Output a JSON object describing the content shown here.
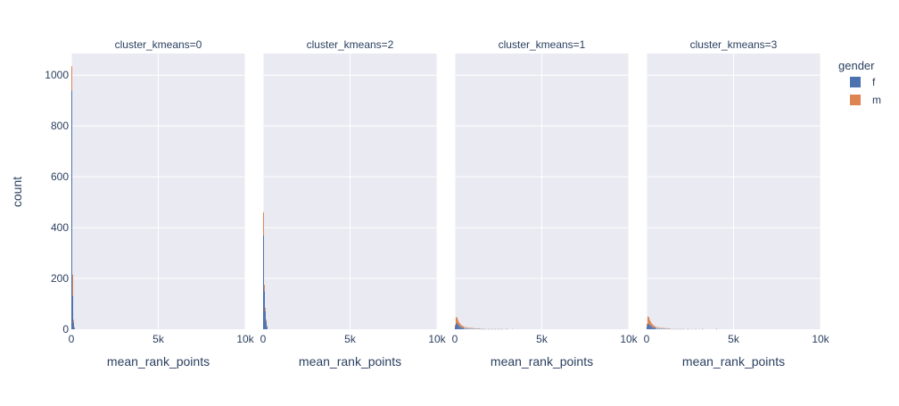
{
  "chart_data": {
    "type": "histogram",
    "barmode": "stack",
    "y_axis_label": "count",
    "x_axis_label": "mean_rank_points",
    "x_range": [
      0,
      10000
    ],
    "y_range": [
      0,
      1085
    ],
    "x_ticks": [
      {
        "value": 0,
        "label": "0"
      },
      {
        "value": 5000,
        "label": "5k"
      },
      {
        "value": 10000,
        "label": "10k"
      }
    ],
    "y_ticks": [
      {
        "value": 0,
        "label": "0"
      },
      {
        "value": 200,
        "label": "200"
      },
      {
        "value": 400,
        "label": "400"
      },
      {
        "value": 600,
        "label": "600"
      },
      {
        "value": 800,
        "label": "800"
      },
      {
        "value": 1000,
        "label": "1000"
      }
    ],
    "grid": true,
    "legend": {
      "title": "gender",
      "placement": "top-right",
      "entries": [
        {
          "name": "f",
          "color": "#4C72B0"
        },
        {
          "name": "m",
          "color": "#DD8452"
        }
      ]
    },
    "colors": {
      "f": "#4C72B0",
      "m": "#DD8452",
      "plot_bg": "#EAEAF2",
      "grid": "#FFFFFF"
    },
    "bin_width": 50,
    "panels": [
      {
        "title": "cluster_kmeans=0",
        "series": [
          {
            "name": "f",
            "bins": [
              [
                0,
                940
              ],
              [
                50,
                130
              ],
              [
                100,
                25
              ],
              [
                150,
                5
              ]
            ]
          },
          {
            "name": "m",
            "bins": [
              [
                0,
                95
              ],
              [
                50,
                85
              ],
              [
                100,
                12
              ],
              [
                150,
                3
              ]
            ]
          }
        ]
      },
      {
        "title": "cluster_kmeans=2",
        "series": [
          {
            "name": "f",
            "bins": [
              [
                0,
                370
              ],
              [
                50,
                150
              ],
              [
                100,
                70
              ],
              [
                150,
                30
              ],
              [
                200,
                10
              ]
            ]
          },
          {
            "name": "m",
            "bins": [
              [
                0,
                90
              ],
              [
                50,
                25
              ],
              [
                100,
                15
              ],
              [
                150,
                8
              ],
              [
                200,
                4
              ]
            ]
          }
        ]
      },
      {
        "title": "cluster_kmeans=1",
        "series": [
          {
            "name": "f",
            "bins": [
              [
                0,
                10
              ],
              [
                50,
                22
              ],
              [
                100,
                25
              ],
              [
                150,
                20
              ],
              [
                200,
                15
              ],
              [
                250,
                12
              ],
              [
                300,
                10
              ],
              [
                350,
                8
              ],
              [
                400,
                7
              ],
              [
                450,
                6
              ],
              [
                500,
                5
              ],
              [
                600,
                4
              ],
              [
                700,
                4
              ],
              [
                800,
                3
              ],
              [
                900,
                3
              ],
              [
                1000,
                3
              ],
              [
                1100,
                2
              ],
              [
                1200,
                2
              ],
              [
                1300,
                2
              ],
              [
                1400,
                2
              ],
              [
                1500,
                1
              ],
              [
                1600,
                1
              ],
              [
                1700,
                1
              ],
              [
                1900,
                1
              ],
              [
                2100,
                1
              ],
              [
                2300,
                1
              ],
              [
                2500,
                1
              ],
              [
                2700,
                1
              ],
              [
                3000,
                1
              ]
            ]
          },
          {
            "name": "m",
            "bins": [
              [
                0,
                8
              ],
              [
                50,
                25
              ],
              [
                100,
                22
              ],
              [
                150,
                18
              ],
              [
                200,
                15
              ],
              [
                250,
                12
              ],
              [
                300,
                10
              ],
              [
                350,
                8
              ],
              [
                400,
                7
              ],
              [
                450,
                6
              ],
              [
                500,
                5
              ],
              [
                600,
                5
              ],
              [
                700,
                4
              ],
              [
                800,
                4
              ],
              [
                900,
                3
              ],
              [
                1000,
                3
              ],
              [
                1100,
                2
              ],
              [
                1200,
                2
              ],
              [
                1300,
                2
              ],
              [
                1400,
                2
              ],
              [
                1500,
                1
              ],
              [
                1600,
                1
              ],
              [
                1800,
                1
              ],
              [
                2000,
                1
              ],
              [
                2200,
                1
              ],
              [
                2400,
                1
              ],
              [
                2600,
                1
              ],
              [
                2900,
                1
              ],
              [
                3300,
                1
              ]
            ]
          }
        ]
      },
      {
        "title": "cluster_kmeans=3",
        "series": [
          {
            "name": "f",
            "bins": [
              [
                0,
                12
              ],
              [
                50,
                20
              ],
              [
                100,
                22
              ],
              [
                150,
                18
              ],
              [
                200,
                15
              ],
              [
                250,
                12
              ],
              [
                300,
                10
              ],
              [
                350,
                8
              ],
              [
                400,
                7
              ],
              [
                450,
                6
              ],
              [
                500,
                5
              ],
              [
                600,
                4
              ],
              [
                700,
                4
              ],
              [
                800,
                3
              ],
              [
                900,
                3
              ],
              [
                1000,
                3
              ],
              [
                1100,
                2
              ],
              [
                1200,
                2
              ],
              [
                1300,
                2
              ],
              [
                1500,
                1
              ],
              [
                1700,
                1
              ],
              [
                1900,
                1
              ],
              [
                2100,
                1
              ],
              [
                2400,
                1
              ],
              [
                2800,
                1
              ],
              [
                3200,
                1
              ],
              [
                4000,
                1
              ]
            ]
          },
          {
            "name": "m",
            "bins": [
              [
                0,
                10
              ],
              [
                50,
                30
              ],
              [
                100,
                26
              ],
              [
                150,
                20
              ],
              [
                200,
                16
              ],
              [
                250,
                13
              ],
              [
                300,
                11
              ],
              [
                350,
                9
              ],
              [
                400,
                7
              ],
              [
                450,
                6
              ],
              [
                500,
                5
              ],
              [
                600,
                5
              ],
              [
                700,
                4
              ],
              [
                800,
                3
              ],
              [
                900,
                3
              ],
              [
                1000,
                3
              ],
              [
                1100,
                2
              ],
              [
                1200,
                2
              ],
              [
                1300,
                2
              ],
              [
                1400,
                1
              ],
              [
                1600,
                1
              ],
              [
                1800,
                1
              ],
              [
                2000,
                1
              ],
              [
                2300,
                1
              ],
              [
                2600,
                1
              ],
              [
                3000,
                1
              ]
            ]
          }
        ]
      }
    ]
  }
}
